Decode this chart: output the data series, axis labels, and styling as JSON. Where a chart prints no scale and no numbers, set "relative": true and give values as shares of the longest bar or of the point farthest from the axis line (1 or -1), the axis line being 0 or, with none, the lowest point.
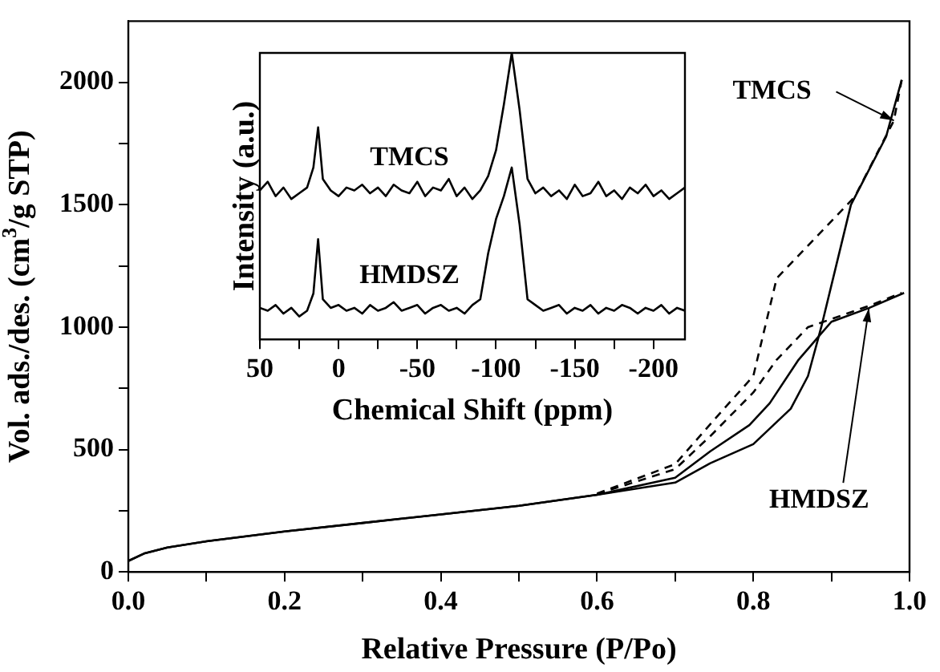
{
  "chart_data": [
    {
      "type": "line",
      "xlabel": "Relative Pressure (P/Po)",
      "ylabel": "Vol. ads./des. (cm$^{3}$/g STP)",
      "xlim": [
        0,
        1
      ],
      "xticks": [
        {
          "value": 0,
          "label": "0.0"
        },
        {
          "value": 0.1,
          "label": null
        },
        {
          "value": 0.2,
          "label": "0.2"
        },
        {
          "value": 0.3,
          "label": null
        },
        {
          "value": 0.4,
          "label": "0.4"
        },
        {
          "value": 0.5,
          "label": null
        },
        {
          "value": 0.6,
          "label": "0.6"
        },
        {
          "value": 0.7,
          "label": null
        },
        {
          "value": 0.8,
          "label": "0.8"
        },
        {
          "value": 0.9,
          "label": null
        },
        {
          "value": 1,
          "label": "1.0"
        }
      ],
      "ylim": [
        0,
        2250
      ],
      "yticks": [
        0,
        {
          "value": 250,
          "label": null
        },
        500,
        {
          "value": 750,
          "label": null
        },
        1000,
        {
          "value": 1250,
          "label": null
        },
        1500,
        {
          "value": 1750,
          "label": null
        },
        2000
      ],
      "series": [
        {
          "color": "#000000",
          "line_style": "solid",
          "x": [
            0,
            0.02,
            0.05,
            0.1,
            0.2,
            0.3,
            0.4,
            0.5,
            0.6,
            0.7,
            0.745,
            0.795,
            0.821,
            0.858,
            0.9,
            0.948,
            0.993
          ],
          "values": [
            45,
            75,
            100,
            125,
            165,
            200,
            235,
            270,
            315,
            385,
            493,
            600,
            689,
            867,
            1022,
            1078,
            1140
          ]
        },
        {
          "color": "#000000",
          "line_style": "solid",
          "x": [
            0,
            0.02,
            0.05,
            0.1,
            0.2,
            0.3,
            0.4,
            0.5,
            0.6,
            0.7,
            0.745,
            0.8,
            0.848,
            0.87,
            0.887,
            0.925,
            0.97,
            0.99
          ],
          "values": [
            45,
            75,
            100,
            125,
            165,
            200,
            235,
            270,
            315,
            365,
            444,
            522,
            667,
            800,
            1000,
            1500,
            1778,
            2010
          ]
        },
        {
          "color": "#000000",
          "line_style": "dashed",
          "x": [
            0.6,
            0.7,
            0.75,
            0.8,
            0.83,
            0.87,
            0.93,
            0.98,
            0.99
          ],
          "values": [
            320,
            440,
            622,
            800,
            1200,
            1333,
            1533,
            1844,
            2010
          ]
        },
        {
          "color": "#000000",
          "line_style": "dashed",
          "x": [
            0.6,
            0.7,
            0.745,
            0.8,
            0.83,
            0.87,
            0.9,
            0.95,
            0.99
          ],
          "values": [
            318,
            420,
            555,
            733,
            867,
            1000,
            1033,
            1089,
            1140
          ]
        }
      ],
      "annotations": [
        {
          "text": "TMCS",
          "x": 0.98,
          "y": 1844
        },
        {
          "text": "HMDSZ",
          "x": 0.948,
          "y": 1078
        }
      ]
    },
    {
      "type": "line",
      "xlabel": "Chemical Shift (ppm)",
      "ylabel": "Intensity (a.u.)",
      "relative": true,
      "tick_labels": "x",
      "xlim": [
        50,
        -220
      ],
      "xticks": [
        50,
        {
          "value": 25,
          "label": null
        },
        0,
        {
          "value": -25,
          "label": null
        },
        -50,
        {
          "value": -75,
          "label": null
        },
        -100,
        {
          "value": -125,
          "label": null
        },
        -150,
        {
          "value": -175,
          "label": null
        },
        -200
      ],
      "x": [
        50,
        45,
        40,
        35,
        30,
        25,
        20,
        16,
        13,
        10,
        5,
        0,
        -5,
        -10,
        -15,
        -20,
        -25,
        -30,
        -35,
        -40,
        -45,
        -50,
        -55,
        -60,
        -65,
        -70,
        -75,
        -80,
        -85,
        -90,
        -95,
        -100,
        -105,
        -110,
        -115,
        -120,
        -125,
        -130,
        -135,
        -140,
        -145,
        -150,
        -155,
        -160,
        -165,
        -170,
        -175,
        -180,
        -185,
        -190,
        -195,
        -200,
        -205,
        -210,
        -215,
        -220
      ],
      "series": [
        {
          "name": "TMCS",
          "color": "#000000",
          "values": [
            0.52,
            0.55,
            0.5,
            0.53,
            0.49,
            0.51,
            0.53,
            0.6,
            0.74,
            0.56,
            0.52,
            0.5,
            0.53,
            0.52,
            0.54,
            0.51,
            0.53,
            0.5,
            0.54,
            0.52,
            0.51,
            0.55,
            0.5,
            0.53,
            0.52,
            0.56,
            0.5,
            0.53,
            0.49,
            0.52,
            0.57,
            0.66,
            0.82,
            1.0,
            0.8,
            0.56,
            0.51,
            0.53,
            0.5,
            0.52,
            0.49,
            0.54,
            0.5,
            0.51,
            0.55,
            0.5,
            0.52,
            0.49,
            0.53,
            0.51,
            0.54,
            0.5,
            0.52,
            0.49,
            0.51,
            0.53
          ]
        },
        {
          "name": "HMDSZ",
          "color": "#000000",
          "values": [
            0.11,
            0.1,
            0.12,
            0.09,
            0.11,
            0.08,
            0.1,
            0.16,
            0.35,
            0.14,
            0.11,
            0.12,
            0.1,
            0.11,
            0.09,
            0.12,
            0.1,
            0.11,
            0.13,
            0.1,
            0.11,
            0.12,
            0.09,
            0.11,
            0.12,
            0.1,
            0.11,
            0.09,
            0.12,
            0.14,
            0.3,
            0.42,
            0.5,
            0.6,
            0.4,
            0.14,
            0.12,
            0.1,
            0.11,
            0.12,
            0.09,
            0.11,
            0.1,
            0.12,
            0.09,
            0.11,
            0.1,
            0.12,
            0.11,
            0.09,
            0.11,
            0.1,
            0.12,
            0.09,
            0.11,
            0.1
          ]
        }
      ]
    }
  ]
}
